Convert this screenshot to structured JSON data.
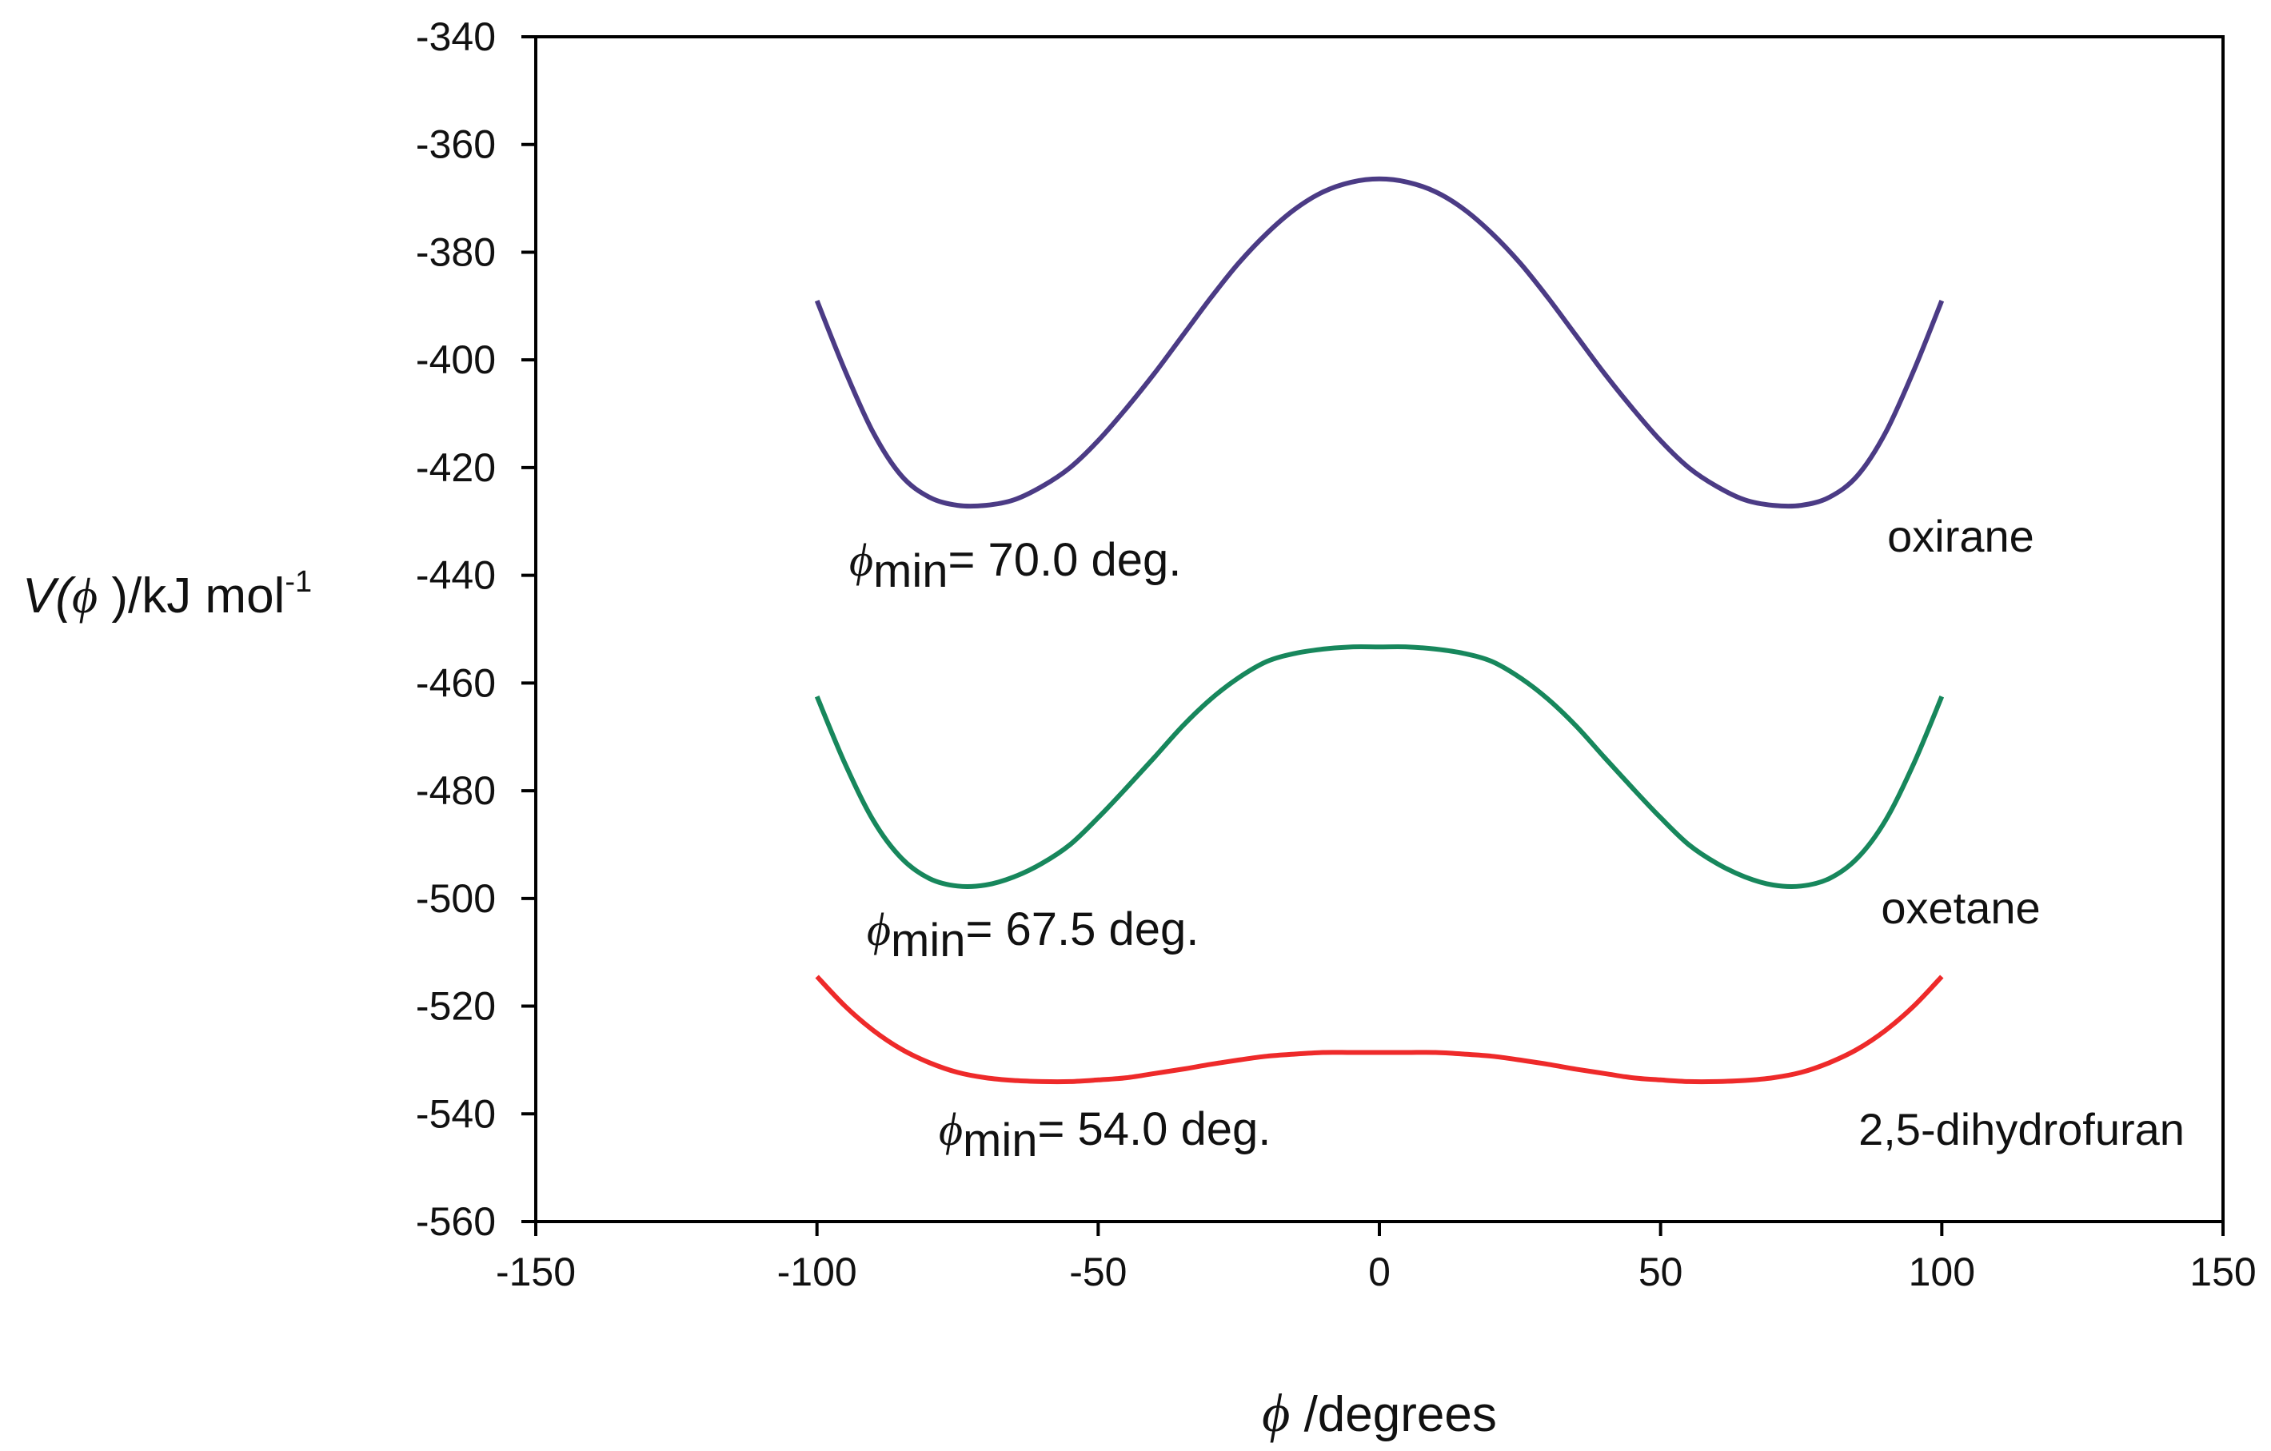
{
  "chart_data": {
    "type": "line",
    "title": "",
    "xlabel": {
      "symbol": "ϕ",
      "text": " /degrees"
    },
    "ylabel": {
      "prefix": "V(",
      "symbol": "ϕ",
      "suffix": " )/kJ mol",
      "superscript": "-1"
    },
    "xlim": [
      -150,
      150
    ],
    "ylim": [
      -560,
      -340
    ],
    "x_ticks": [
      -150,
      -100,
      -50,
      0,
      50,
      100,
      150
    ],
    "y_ticks": [
      -340,
      -360,
      -380,
      -400,
      -420,
      -440,
      -460,
      -480,
      -500,
      -520,
      -540,
      -560
    ],
    "grid": false,
    "series": [
      {
        "name": "oxirane",
        "color": "#4b3b85",
        "phi_min_label": {
          "symbol": "ϕ",
          "sub": "min",
          "text": "= 70.0 deg."
        },
        "x": [
          -100,
          -95,
          -90,
          -85,
          -80,
          -75,
          -70,
          -65,
          -60,
          -55,
          -50,
          -45,
          -40,
          -35,
          -30,
          -25,
          -20,
          -15,
          -10,
          -5,
          0,
          5,
          10,
          15,
          20,
          25,
          30,
          35,
          40,
          45,
          50,
          55,
          60,
          65,
          70,
          75,
          80,
          85,
          90,
          95,
          100
        ],
        "values": [
          -389,
          -402,
          -413.5,
          -421.5,
          -425.5,
          -427,
          -427,
          -426,
          -423.5,
          -420,
          -415,
          -409,
          -402.5,
          -395.5,
          -388.5,
          -382,
          -376.5,
          -372,
          -368.8,
          -367,
          -366.4,
          -367,
          -368.8,
          -372,
          -376.5,
          -382,
          -388.5,
          -395.5,
          -402.5,
          -409,
          -415,
          -420,
          -423.5,
          -426,
          -427,
          -427,
          -425.5,
          -421.5,
          -413.5,
          -402,
          -389
        ]
      },
      {
        "name": "oxetane",
        "color": "#17875c",
        "phi_min_label": {
          "symbol": "ϕ",
          "sub": "min",
          "text": "= 67.5 deg."
        },
        "x": [
          -100,
          -95,
          -90,
          -85,
          -80,
          -75,
          -70,
          -65,
          -60,
          -55,
          -50,
          -45,
          -40,
          -35,
          -30,
          -25,
          -20,
          -15,
          -10,
          -5,
          0,
          5,
          10,
          15,
          20,
          25,
          30,
          35,
          40,
          45,
          50,
          55,
          60,
          65,
          70,
          75,
          80,
          85,
          90,
          95,
          100
        ],
        "values": [
          -462.5,
          -475,
          -485.5,
          -492.5,
          -496.3,
          -497.7,
          -497.5,
          -496,
          -493.5,
          -490,
          -485,
          -479.5,
          -473.8,
          -468,
          -463,
          -459,
          -456,
          -454.5,
          -453.7,
          -453.3,
          -453.3,
          -453.3,
          -453.7,
          -454.5,
          -456,
          -459,
          -463,
          -468,
          -473.8,
          -479.5,
          -485,
          -490,
          -493.5,
          -496,
          -497.5,
          -497.7,
          -496.3,
          -492.5,
          -485.5,
          -475,
          -462.5
        ]
      },
      {
        "name": "2,5-dihydrofuran",
        "color": "#ee2a2a",
        "phi_min_label": {
          "symbol": "ϕ",
          "sub": "min",
          "text": "= 54.0 deg."
        },
        "x": [
          -100,
          -95,
          -90,
          -85,
          -80,
          -75,
          -70,
          -65,
          -60,
          -55,
          -50,
          -45,
          -40,
          -35,
          -30,
          -25,
          -20,
          -15,
          -10,
          -5,
          0,
          5,
          10,
          15,
          20,
          25,
          30,
          35,
          40,
          45,
          50,
          55,
          60,
          65,
          70,
          75,
          80,
          85,
          90,
          95,
          100
        ],
        "values": [
          -514.5,
          -520,
          -524.5,
          -528,
          -530.5,
          -532.3,
          -533.3,
          -533.8,
          -534,
          -534,
          -533.7,
          -533.3,
          -532.5,
          -531.7,
          -530.8,
          -530,
          -529.3,
          -528.9,
          -528.6,
          -528.6,
          -528.6,
          -528.6,
          -528.6,
          -528.9,
          -529.3,
          -530,
          -530.8,
          -531.7,
          -532.5,
          -533.3,
          -533.7,
          -534,
          -534,
          -533.8,
          -533.3,
          -532.3,
          -530.5,
          -528,
          -524.5,
          -520,
          -514.5
        ]
      }
    ]
  }
}
